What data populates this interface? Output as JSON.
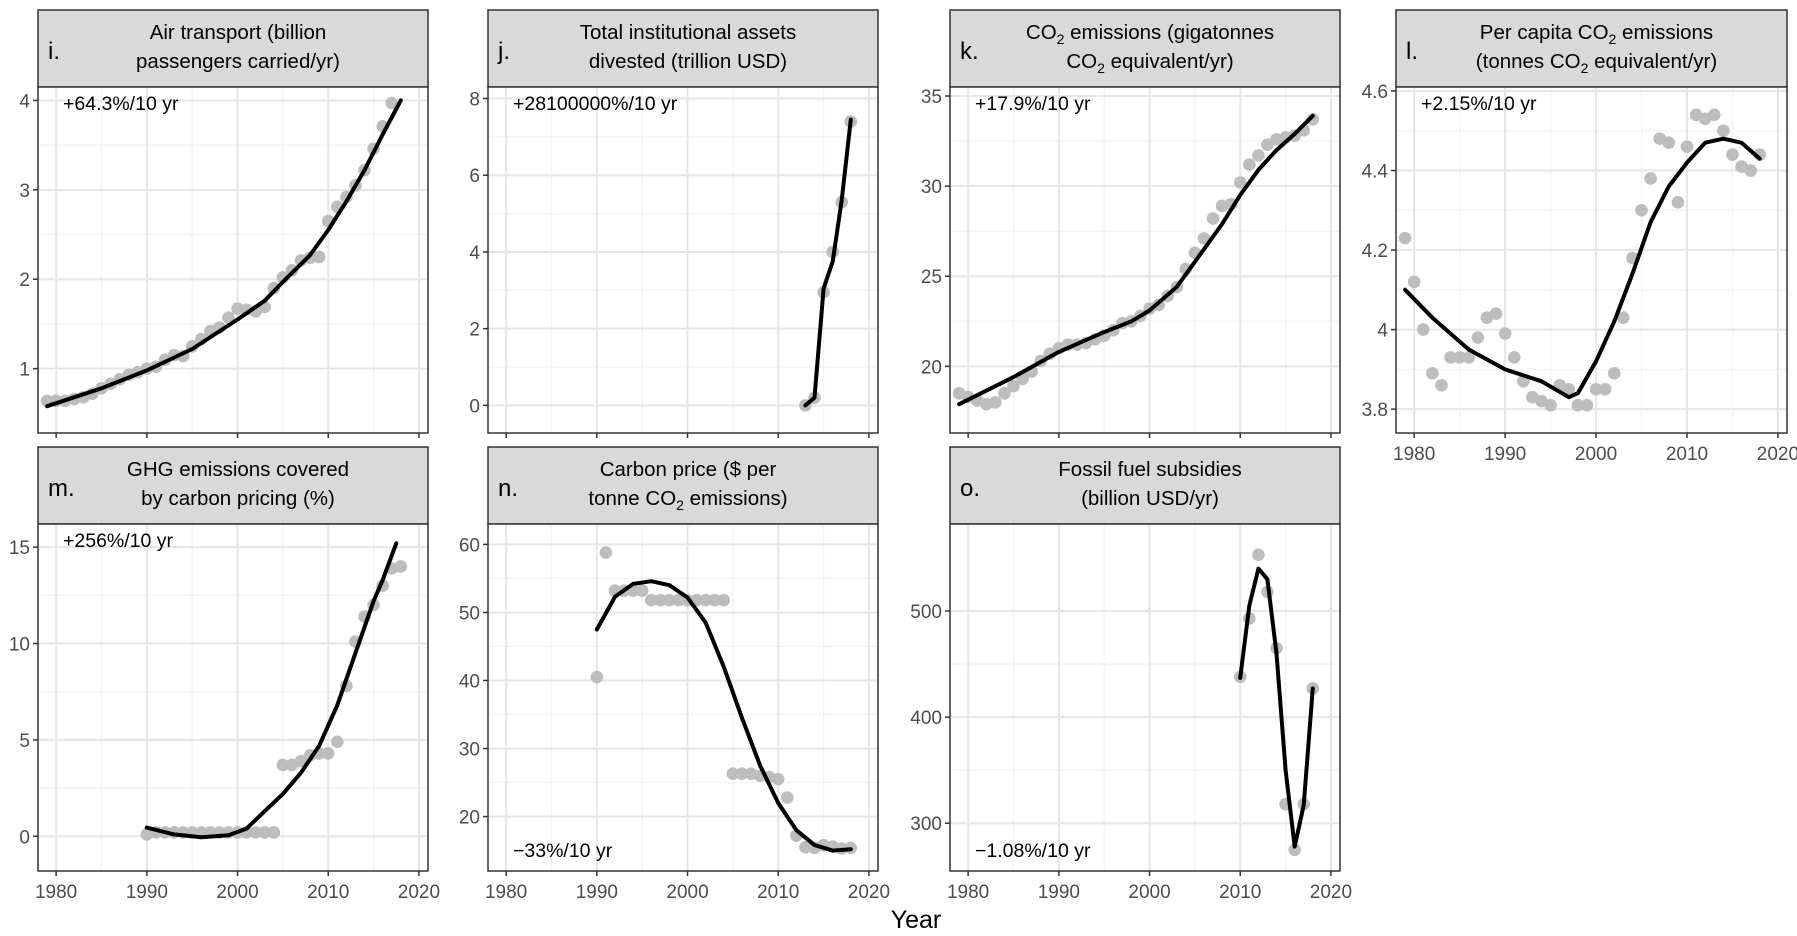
{
  "figure": {
    "xlabel": "Year"
  },
  "chart_data": [
    {
      "id": "i",
      "letter": "i.",
      "type": "scatter",
      "title_lines": [
        "Air transport (billion",
        "passengers carried/yr)"
      ],
      "annotation": "+64.3%/10 yr",
      "annotation_position": "top-left",
      "xlim": [
        1978,
        2021
      ],
      "ylim": [
        0.28,
        4.15
      ],
      "x_ticks": [
        1980,
        1990,
        2000,
        2010,
        2020
      ],
      "y_ticks": [
        1,
        2,
        3,
        4
      ],
      "x_tick_labels_shown": false,
      "y_gridlines": [
        1,
        2,
        3,
        4
      ],
      "points": [
        [
          1979,
          0.64
        ],
        [
          1980,
          0.64
        ],
        [
          1981,
          0.64
        ],
        [
          1982,
          0.66
        ],
        [
          1983,
          0.68
        ],
        [
          1984,
          0.72
        ],
        [
          1985,
          0.78
        ],
        [
          1986,
          0.83
        ],
        [
          1987,
          0.88
        ],
        [
          1988,
          0.93
        ],
        [
          1989,
          0.96
        ],
        [
          1990,
          1.0
        ],
        [
          1991,
          1.02
        ],
        [
          1992,
          1.1
        ],
        [
          1993,
          1.15
        ],
        [
          1994,
          1.14
        ],
        [
          1995,
          1.25
        ],
        [
          1996,
          1.33
        ],
        [
          1997,
          1.42
        ],
        [
          1998,
          1.46
        ],
        [
          1999,
          1.57
        ],
        [
          2000,
          1.67
        ],
        [
          2001,
          1.66
        ],
        [
          2002,
          1.64
        ],
        [
          2003,
          1.69
        ],
        [
          2004,
          1.9
        ],
        [
          2005,
          2.02
        ],
        [
          2006,
          2.1
        ],
        [
          2007,
          2.21
        ],
        [
          2008,
          2.24
        ],
        [
          2009,
          2.25
        ],
        [
          2010,
          2.65
        ],
        [
          2011,
          2.81
        ],
        [
          2012,
          2.92
        ],
        [
          2013,
          3.05
        ],
        [
          2014,
          3.22
        ],
        [
          2015,
          3.46
        ],
        [
          2016,
          3.71
        ],
        [
          2017,
          3.97
        ]
      ],
      "trend": [
        [
          1979,
          0.58
        ],
        [
          1985,
          0.78
        ],
        [
          1990,
          0.98
        ],
        [
          1995,
          1.22
        ],
        [
          2000,
          1.55
        ],
        [
          2003,
          1.76
        ],
        [
          2005,
          1.97
        ],
        [
          2008,
          2.27
        ],
        [
          2010,
          2.55
        ],
        [
          2012,
          2.87
        ],
        [
          2014,
          3.22
        ],
        [
          2016,
          3.62
        ],
        [
          2018,
          4.0
        ]
      ]
    },
    {
      "id": "j",
      "letter": "j.",
      "type": "scatter",
      "title_lines": [
        "Total institutional assets",
        "divested (trillion USD)"
      ],
      "annotation": "+28100000%/10 yr",
      "annotation_position": "top-left",
      "xlim": [
        1978,
        2021
      ],
      "ylim": [
        -0.72,
        8.3
      ],
      "x_ticks": [
        1980,
        1990,
        2000,
        2010,
        2020
      ],
      "y_ticks": [
        0,
        2,
        4,
        6,
        8
      ],
      "x_tick_labels_shown": false,
      "y_gridlines": [
        0,
        2,
        4,
        6,
        8
      ],
      "points": [
        [
          2013,
          0.0
        ],
        [
          2014,
          0.2
        ],
        [
          2015,
          2.95
        ],
        [
          2016,
          4.0
        ],
        [
          2017,
          5.3
        ],
        [
          2018,
          7.4
        ]
      ],
      "trend": [
        [
          2013,
          0.0
        ],
        [
          2014,
          0.2
        ],
        [
          2015,
          3.05
        ],
        [
          2016,
          3.75
        ],
        [
          2017,
          5.35
        ],
        [
          2018,
          7.45
        ]
      ]
    },
    {
      "id": "k",
      "letter": "k.",
      "type": "scatter",
      "title_lines": [
        "CO₂ emissions (gigatonnes",
        "CO₂ equivalent/yr)"
      ],
      "annotation": "+17.9%/10 yr",
      "annotation_position": "top-left",
      "xlim": [
        1978,
        2021
      ],
      "ylim": [
        16.3,
        35.5
      ],
      "x_ticks": [
        1980,
        1990,
        2000,
        2010,
        2020
      ],
      "y_ticks": [
        20,
        25,
        30,
        35
      ],
      "x_tick_labels_shown": false,
      "y_gridlines": [
        20,
        25,
        30,
        35
      ],
      "points": [
        [
          1979,
          18.5
        ],
        [
          1980,
          18.3
        ],
        [
          1981,
          18.1
        ],
        [
          1982,
          17.9
        ],
        [
          1983,
          18.0
        ],
        [
          1984,
          18.5
        ],
        [
          1985,
          18.9
        ],
        [
          1986,
          19.3
        ],
        [
          1987,
          19.7
        ],
        [
          1988,
          20.3
        ],
        [
          1989,
          20.7
        ],
        [
          1990,
          21.0
        ],
        [
          1991,
          21.2
        ],
        [
          1992,
          21.2
        ],
        [
          1993,
          21.3
        ],
        [
          1994,
          21.5
        ],
        [
          1995,
          21.7
        ],
        [
          1996,
          22.0
        ],
        [
          1997,
          22.4
        ],
        [
          1998,
          22.5
        ],
        [
          1999,
          22.8
        ],
        [
          2000,
          23.2
        ],
        [
          2001,
          23.4
        ],
        [
          2002,
          23.9
        ],
        [
          2003,
          24.4
        ],
        [
          2004,
          25.4
        ],
        [
          2005,
          26.3
        ],
        [
          2006,
          27.1
        ],
        [
          2007,
          28.2
        ],
        [
          2008,
          28.9
        ],
        [
          2009,
          29.0
        ],
        [
          2010,
          30.2
        ],
        [
          2011,
          31.2
        ],
        [
          2012,
          31.7
        ],
        [
          2013,
          32.3
        ],
        [
          2014,
          32.6
        ],
        [
          2015,
          32.7
        ],
        [
          2016,
          32.8
        ],
        [
          2017,
          33.1
        ],
        [
          2018,
          33.7
        ]
      ],
      "trend": [
        [
          1979,
          17.9
        ],
        [
          1985,
          19.4
        ],
        [
          1990,
          20.8
        ],
        [
          1995,
          21.9
        ],
        [
          1998,
          22.5
        ],
        [
          2000,
          23.1
        ],
        [
          2003,
          24.4
        ],
        [
          2006,
          26.5
        ],
        [
          2008,
          27.9
        ],
        [
          2010,
          29.5
        ],
        [
          2012,
          30.9
        ],
        [
          2014,
          32.0
        ],
        [
          2016,
          32.9
        ],
        [
          2018,
          33.9
        ]
      ]
    },
    {
      "id": "l",
      "letter": "l.",
      "type": "scatter",
      "title_lines": [
        "Per capita CO₂ emissions",
        "(tonnes CO₂ equivalent/yr)"
      ],
      "annotation": "+2.15%/10 yr",
      "annotation_position": "top-left",
      "xlim": [
        1978,
        2021
      ],
      "ylim": [
        3.74,
        4.61
      ],
      "x_ticks": [
        1980,
        1990,
        2000,
        2010,
        2020
      ],
      "y_ticks": [
        3.8,
        4.0,
        4.2,
        4.4,
        4.6
      ],
      "x_tick_labels": [
        "1980",
        "1990",
        "2000",
        "2010",
        "2020"
      ],
      "x_tick_labels_shown": true,
      "y_gridlines": [
        3.8,
        4.0,
        4.2,
        4.4,
        4.6
      ],
      "points": [
        [
          1979,
          4.23
        ],
        [
          1980,
          4.12
        ],
        [
          1981,
          4.0
        ],
        [
          1982,
          3.89
        ],
        [
          1983,
          3.86
        ],
        [
          1984,
          3.93
        ],
        [
          1985,
          3.93
        ],
        [
          1986,
          3.93
        ],
        [
          1987,
          3.98
        ],
        [
          1988,
          4.03
        ],
        [
          1989,
          4.04
        ],
        [
          1990,
          3.99
        ],
        [
          1991,
          3.93
        ],
        [
          1992,
          3.87
        ],
        [
          1993,
          3.83
        ],
        [
          1994,
          3.82
        ],
        [
          1995,
          3.81
        ],
        [
          1996,
          3.86
        ],
        [
          1997,
          3.85
        ],
        [
          1998,
          3.81
        ],
        [
          1999,
          3.81
        ],
        [
          2000,
          3.85
        ],
        [
          2001,
          3.85
        ],
        [
          2002,
          3.89
        ],
        [
          2003,
          4.03
        ],
        [
          2004,
          4.18
        ],
        [
          2005,
          4.3
        ],
        [
          2006,
          4.38
        ],
        [
          2007,
          4.48
        ],
        [
          2008,
          4.47
        ],
        [
          2009,
          4.32
        ],
        [
          2010,
          4.46
        ],
        [
          2011,
          4.54
        ],
        [
          2012,
          4.53
        ],
        [
          2013,
          4.54
        ],
        [
          2014,
          4.5
        ],
        [
          2015,
          4.44
        ],
        [
          2016,
          4.41
        ],
        [
          2017,
          4.4
        ],
        [
          2018,
          4.44
        ]
      ],
      "trend": [
        [
          1979,
          4.1
        ],
        [
          1982,
          4.03
        ],
        [
          1986,
          3.95
        ],
        [
          1990,
          3.9
        ],
        [
          1994,
          3.87
        ],
        [
          1997,
          3.83
        ],
        [
          1998,
          3.84
        ],
        [
          2000,
          3.92
        ],
        [
          2002,
          4.02
        ],
        [
          2004,
          4.14
        ],
        [
          2006,
          4.27
        ],
        [
          2008,
          4.36
        ],
        [
          2010,
          4.42
        ],
        [
          2012,
          4.47
        ],
        [
          2014,
          4.48
        ],
        [
          2016,
          4.47
        ],
        [
          2018,
          4.43
        ]
      ]
    },
    {
      "id": "m",
      "letter": "m.",
      "type": "scatter",
      "title_lines": [
        "GHG emissions covered",
        "by carbon pricing (%)"
      ],
      "annotation": "+256%/10 yr",
      "annotation_position": "top-left",
      "xlim": [
        1978,
        2021
      ],
      "ylim": [
        -1.8,
        16.2
      ],
      "x_ticks": [
        1980,
        1990,
        2000,
        2010,
        2020
      ],
      "y_ticks": [
        0,
        5,
        10,
        15
      ],
      "x_tick_labels": [
        "1980",
        "1990",
        "2000",
        "2010",
        "2020"
      ],
      "x_tick_labels_shown": true,
      "y_gridlines": [
        0,
        5,
        10,
        15
      ],
      "points": [
        [
          1990,
          0.1
        ],
        [
          1991,
          0.2
        ],
        [
          1992,
          0.2
        ],
        [
          1993,
          0.2
        ],
        [
          1994,
          0.2
        ],
        [
          1995,
          0.2
        ],
        [
          1996,
          0.2
        ],
        [
          1997,
          0.2
        ],
        [
          1998,
          0.2
        ],
        [
          1999,
          0.2
        ],
        [
          2000,
          0.2
        ],
        [
          2001,
          0.2
        ],
        [
          2002,
          0.2
        ],
        [
          2003,
          0.2
        ],
        [
          2004,
          0.2
        ],
        [
          2005,
          3.7
        ],
        [
          2006,
          3.7
        ],
        [
          2007,
          3.9
        ],
        [
          2008,
          4.2
        ],
        [
          2009,
          4.3
        ],
        [
          2010,
          4.3
        ],
        [
          2011,
          4.9
        ],
        [
          2012,
          7.8
        ],
        [
          2013,
          10.1
        ],
        [
          2014,
          11.4
        ],
        [
          2015,
          12.0
        ],
        [
          2016,
          13.0
        ],
        [
          2017,
          13.9
        ],
        [
          2018,
          14.0
        ]
      ],
      "trend": [
        [
          1990,
          0.45
        ],
        [
          1993,
          0.1
        ],
        [
          1996,
          -0.05
        ],
        [
          1999,
          0.05
        ],
        [
          2001,
          0.4
        ],
        [
          2003,
          1.3
        ],
        [
          2005,
          2.2
        ],
        [
          2007,
          3.3
        ],
        [
          2009,
          4.7
        ],
        [
          2011,
          6.8
        ],
        [
          2013,
          9.5
        ],
        [
          2015,
          12.2
        ],
        [
          2016,
          13.3
        ],
        [
          2017.5,
          15.2
        ]
      ]
    },
    {
      "id": "n",
      "letter": "n.",
      "type": "scatter",
      "title_lines": [
        "Carbon price ($ per",
        "tonne CO₂ emissions)"
      ],
      "annotation": "−33%/10 yr",
      "annotation_position": "bottom-left",
      "xlim": [
        1978,
        2021
      ],
      "ylim": [
        12.0,
        63.0
      ],
      "x_ticks": [
        1980,
        1990,
        2000,
        2010,
        2020
      ],
      "y_ticks": [
        20,
        30,
        40,
        50,
        60
      ],
      "x_tick_labels": [
        "1980",
        "1990",
        "2000",
        "2010",
        "2020"
      ],
      "x_tick_labels_shown": true,
      "y_gridlines": [
        20,
        30,
        40,
        50,
        60
      ],
      "points": [
        [
          1990,
          40.5
        ],
        [
          1991,
          58.8
        ],
        [
          1992,
          53.2
        ],
        [
          1993,
          53.2
        ],
        [
          1994,
          53.2
        ],
        [
          1995,
          53.2
        ],
        [
          1996,
          51.8
        ],
        [
          1997,
          51.8
        ],
        [
          1998,
          51.8
        ],
        [
          1999,
          51.8
        ],
        [
          2000,
          51.8
        ],
        [
          2001,
          51.8
        ],
        [
          2002,
          51.8
        ],
        [
          2003,
          51.8
        ],
        [
          2004,
          51.8
        ],
        [
          2005,
          26.3
        ],
        [
          2006,
          26.3
        ],
        [
          2007,
          26.3
        ],
        [
          2008,
          26.0
        ],
        [
          2009,
          25.8
        ],
        [
          2010,
          25.5
        ],
        [
          2011,
          22.8
        ],
        [
          2012,
          17.2
        ],
        [
          2013,
          15.5
        ],
        [
          2014,
          15.4
        ],
        [
          2015,
          15.8
        ],
        [
          2016,
          15.6
        ],
        [
          2017,
          15.3
        ],
        [
          2018,
          15.4
        ]
      ],
      "trend": [
        [
          1990,
          47.5
        ],
        [
          1992,
          52.3
        ],
        [
          1994,
          54.2
        ],
        [
          1996,
          54.6
        ],
        [
          1998,
          54.0
        ],
        [
          2000,
          52.2
        ],
        [
          2002,
          48.5
        ],
        [
          2004,
          42.0
        ],
        [
          2006,
          34.5
        ],
        [
          2008,
          27.5
        ],
        [
          2010,
          22.0
        ],
        [
          2012,
          18.0
        ],
        [
          2014,
          15.8
        ],
        [
          2016,
          15.0
        ],
        [
          2018,
          15.2
        ]
      ]
    },
    {
      "id": "o",
      "letter": "o.",
      "type": "scatter",
      "title_lines": [
        "Fossil fuel subsidies",
        "(billion USD/yr)"
      ],
      "annotation": "−1.08%/10 yr",
      "annotation_position": "bottom-left",
      "xlim": [
        1978,
        2021
      ],
      "ylim": [
        255,
        582
      ],
      "x_ticks": [
        1980,
        1990,
        2000,
        2010,
        2020
      ],
      "y_ticks": [
        300,
        400,
        500
      ],
      "x_tick_labels": [
        "1980",
        "1990",
        "2000",
        "2010",
        "2020"
      ],
      "x_tick_labels_shown": true,
      "y_gridlines": [
        300,
        400,
        500
      ],
      "points": [
        [
          2010,
          438
        ],
        [
          2011,
          493
        ],
        [
          2012,
          553
        ],
        [
          2013,
          518
        ],
        [
          2014,
          465
        ],
        [
          2015,
          318
        ],
        [
          2016,
          275
        ],
        [
          2017,
          318
        ],
        [
          2018,
          427
        ]
      ],
      "trend": [
        [
          2010,
          437
        ],
        [
          2011,
          505
        ],
        [
          2012,
          540
        ],
        [
          2013,
          530
        ],
        [
          2014,
          460
        ],
        [
          2015,
          350
        ],
        [
          2016,
          278
        ],
        [
          2017,
          317
        ],
        [
          2018,
          427
        ]
      ]
    }
  ]
}
